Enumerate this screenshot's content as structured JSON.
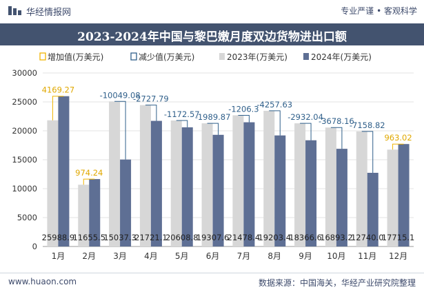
{
  "header": {
    "brand": "华经情报网",
    "tagline": "专业严谨 • 客观科学"
  },
  "footer": {
    "site": "www.huaon.com",
    "source": "数据来源：中国海关，华经产业研究院整理"
  },
  "chart_data": {
    "type": "bar",
    "title": "2023-2024年中国与黎巴嫩月度双边货物进出口额",
    "categories": [
      "1月",
      "2月",
      "3月",
      "4月",
      "5月",
      "6月",
      "7月",
      "8月",
      "9月",
      "10月",
      "11月",
      "12月"
    ],
    "series": [
      {
        "name": "2023年(万美元)",
        "color": "#d7d7d7",
        "values": [
          21819.6,
          10681.3,
          25086.4,
          24448.9,
          21781.4,
          21297.5,
          22684.7,
          23461.0,
          21298.7,
          20571.4,
          19898.8,
          16752.1
        ]
      },
      {
        "name": "2024年(万美元)",
        "color": "#5e6f94",
        "values": [
          25988.9,
          11655.5,
          15037.3,
          21721.1,
          20608.8,
          19307.6,
          21478.4,
          19203.4,
          18366.6,
          16893.2,
          12740.0,
          17715.1
        ]
      }
    ],
    "diff": {
      "increase_name": "增加值(万美元)",
      "decrease_name": "减少值(万美元)",
      "increase_color": "#f0b400",
      "decrease_color": "#2f5f8a",
      "labels": [
        "4169.27",
        "974.24",
        "-10049.08",
        "-2727.79",
        "-1172.57",
        "-1989.87",
        "-1206.3",
        "-4257.63",
        "-2932.04",
        "-3678.16",
        "-7158.82",
        "963.02"
      ]
    },
    "bar_labels": [
      "25988.9",
      "11655.5",
      "15037.3",
      "21721.1",
      "20608.8",
      "19307.6",
      "21478.4",
      "19203.4",
      "18366.6",
      "16893.2",
      "12740.0",
      "17715.1"
    ],
    "yticks": [
      "0",
      "5000",
      "10000",
      "15000",
      "20000",
      "25000",
      "30000"
    ],
    "ylim": [
      0,
      30000
    ],
    "legend_position": "top-left"
  }
}
